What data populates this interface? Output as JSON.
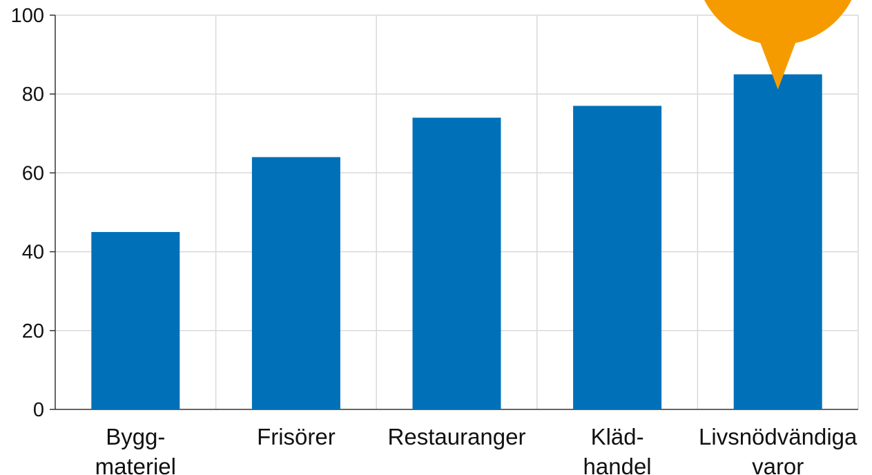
{
  "chart_data": {
    "type": "bar",
    "categories": [
      [
        "Bygg-",
        "materiel"
      ],
      [
        "Frisörer"
      ],
      [
        "Restauranger"
      ],
      [
        "Kläd-",
        "handel"
      ],
      [
        "Livsnödvändiga",
        "varor"
      ]
    ],
    "values": [
      45,
      64,
      74,
      77,
      85
    ],
    "ylim": [
      0,
      100
    ],
    "yticks": [
      "0",
      "20",
      "40",
      "60",
      "80",
      "100"
    ],
    "grid": true,
    "bar_color": "#0070B8",
    "callout_color": "#F59B00",
    "highlighted_category_index": 4
  }
}
